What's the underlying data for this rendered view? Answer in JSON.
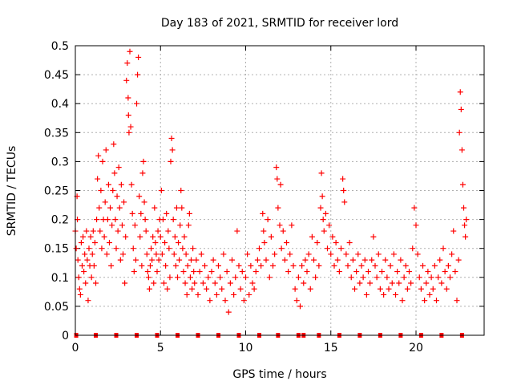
{
  "chart_data": {
    "type": "scatter",
    "title": "Day 183 of 2021, SRMTID for receiver lord",
    "xlabel": "GPS time / hours",
    "ylabel": "SRMTID / TECUs",
    "xlim": [
      0,
      24
    ],
    "ylim": [
      0,
      0.5
    ],
    "x_ticks": [
      0,
      5,
      10,
      15,
      20
    ],
    "x_tick_labels": [
      "0",
      "5",
      "10",
      "15",
      "20"
    ],
    "y_ticks": [
      0,
      0.05,
      0.1,
      0.15,
      0.2,
      0.25,
      0.3,
      0.35,
      0.4,
      0.45,
      0.5
    ],
    "y_tick_labels": [
      "0",
      "0.05",
      "0.1",
      "0.15",
      "0.2",
      "0.25",
      "0.3",
      "0.35",
      "0.4",
      "0.45",
      "0.5"
    ],
    "grid": true,
    "marker": "+",
    "color": "#ff0000",
    "zero_markers_x": [
      0.05,
      1.2,
      2.4,
      3.6,
      4.8,
      6.0,
      7.2,
      8.4,
      9.6,
      10.8,
      11.9,
      13.1,
      13.4,
      14.3,
      15.5,
      16.7,
      17.9,
      19.1,
      20.3,
      21.5,
      22.7
    ],
    "series": [
      {
        "name": "SRMTID",
        "points": [
          [
            0.0,
            0.18
          ],
          [
            0.05,
            0.15
          ],
          [
            0.1,
            0.24
          ],
          [
            0.12,
            0.2
          ],
          [
            0.15,
            0.13
          ],
          [
            0.2,
            0.1
          ],
          [
            0.25,
            0.08
          ],
          [
            0.3,
            0.07
          ],
          [
            0.35,
            0.16
          ],
          [
            0.4,
            0.12
          ],
          [
            0.45,
            0.17
          ],
          [
            0.5,
            0.11
          ],
          [
            0.55,
            0.14
          ],
          [
            0.6,
            0.09
          ],
          [
            0.65,
            0.18
          ],
          [
            0.7,
            0.13
          ],
          [
            0.75,
            0.06
          ],
          [
            0.8,
            0.15
          ],
          [
            0.85,
            0.12
          ],
          [
            0.9,
            0.17
          ],
          [
            0.95,
            0.1
          ],
          [
            1.0,
            0.14
          ],
          [
            1.05,
            0.18
          ],
          [
            1.1,
            0.12
          ],
          [
            1.15,
            0.16
          ],
          [
            1.2,
            0.09
          ],
          [
            1.25,
            0.2
          ],
          [
            1.3,
            0.27
          ],
          [
            1.35,
            0.31
          ],
          [
            1.4,
            0.22
          ],
          [
            1.45,
            0.18
          ],
          [
            1.5,
            0.25
          ],
          [
            1.55,
            0.15
          ],
          [
            1.6,
            0.3
          ],
          [
            1.65,
            0.2
          ],
          [
            1.7,
            0.17
          ],
          [
            1.75,
            0.23
          ],
          [
            1.8,
            0.32
          ],
          [
            1.85,
            0.14
          ],
          [
            1.9,
            0.2
          ],
          [
            1.95,
            0.26
          ],
          [
            2.0,
            0.16
          ],
          [
            2.05,
            0.22
          ],
          [
            2.1,
            0.12
          ],
          [
            2.15,
            0.19
          ],
          [
            2.2,
            0.25
          ],
          [
            2.25,
            0.33
          ],
          [
            2.3,
            0.28
          ],
          [
            2.35,
            0.2
          ],
          [
            2.4,
            0.15
          ],
          [
            2.45,
            0.24
          ],
          [
            2.5,
            0.18
          ],
          [
            2.55,
            0.29
          ],
          [
            2.6,
            0.22
          ],
          [
            2.65,
            0.13
          ],
          [
            2.7,
            0.26
          ],
          [
            2.75,
            0.19
          ],
          [
            2.8,
            0.14
          ],
          [
            2.85,
            0.23
          ],
          [
            2.9,
            0.09
          ],
          [
            2.95,
            0.17
          ],
          [
            3.0,
            0.44
          ],
          [
            3.05,
            0.47
          ],
          [
            3.1,
            0.41
          ],
          [
            3.12,
            0.38
          ],
          [
            3.15,
            0.35
          ],
          [
            3.2,
            0.49
          ],
          [
            3.25,
            0.36
          ],
          [
            3.3,
            0.26
          ],
          [
            3.35,
            0.21
          ],
          [
            3.4,
            0.15
          ],
          [
            3.45,
            0.11
          ],
          [
            3.5,
            0.19
          ],
          [
            3.55,
            0.13
          ],
          [
            3.6,
            0.4
          ],
          [
            3.65,
            0.45
          ],
          [
            3.7,
            0.48
          ],
          [
            3.75,
            0.24
          ],
          [
            3.8,
            0.17
          ],
          [
            3.85,
            0.21
          ],
          [
            3.9,
            0.12
          ],
          [
            3.95,
            0.28
          ],
          [
            4.0,
            0.3
          ],
          [
            4.05,
            0.23
          ],
          [
            4.1,
            0.2
          ],
          [
            4.15,
            0.18
          ],
          [
            4.2,
            0.14
          ],
          [
            4.25,
            0.11
          ],
          [
            4.3,
            0.1
          ],
          [
            4.35,
            0.08
          ],
          [
            4.4,
            0.12
          ],
          [
            4.45,
            0.15
          ],
          [
            4.5,
            0.13
          ],
          [
            4.55,
            0.17
          ],
          [
            4.6,
            0.09
          ],
          [
            4.65,
            0.22
          ],
          [
            4.7,
            0.16
          ],
          [
            4.75,
            0.14
          ],
          [
            4.8,
            0.11
          ],
          [
            4.85,
            0.18
          ],
          [
            4.9,
            0.13
          ],
          [
            4.95,
            0.2
          ],
          [
            5.0,
            0.17
          ],
          [
            5.05,
            0.25
          ],
          [
            5.1,
            0.14
          ],
          [
            5.15,
            0.2
          ],
          [
            5.2,
            0.09
          ],
          [
            5.25,
            0.16
          ],
          [
            5.3,
            0.12
          ],
          [
            5.35,
            0.21
          ],
          [
            5.4,
            0.08
          ],
          [
            5.45,
            0.18
          ],
          [
            5.5,
            0.15
          ],
          [
            5.55,
            0.1
          ],
          [
            5.6,
            0.3
          ],
          [
            5.65,
            0.34
          ],
          [
            5.7,
            0.32
          ],
          [
            5.75,
            0.2
          ],
          [
            5.8,
            0.14
          ],
          [
            5.85,
            0.17
          ],
          [
            5.9,
            0.12
          ],
          [
            5.95,
            0.22
          ],
          [
            6.0,
            0.1
          ],
          [
            6.05,
            0.16
          ],
          [
            6.1,
            0.13
          ],
          [
            6.15,
            0.19
          ],
          [
            6.2,
            0.25
          ],
          [
            6.25,
            0.22
          ],
          [
            6.3,
            0.15
          ],
          [
            6.35,
            0.11
          ],
          [
            6.4,
            0.17
          ],
          [
            6.45,
            0.09
          ],
          [
            6.5,
            0.14
          ],
          [
            6.55,
            0.07
          ],
          [
            6.6,
            0.12
          ],
          [
            6.65,
            0.19
          ],
          [
            6.7,
            0.21
          ],
          [
            6.75,
            0.1
          ],
          [
            6.8,
            0.13
          ],
          [
            6.85,
            0.08
          ],
          [
            6.9,
            0.15
          ],
          [
            6.95,
            0.11
          ],
          [
            7.0,
            0.09
          ],
          [
            7.1,
            0.13
          ],
          [
            7.2,
            0.07
          ],
          [
            7.3,
            0.11
          ],
          [
            7.4,
            0.14
          ],
          [
            7.5,
            0.09
          ],
          [
            7.6,
            0.12
          ],
          [
            7.7,
            0.08
          ],
          [
            7.8,
            0.1
          ],
          [
            7.9,
            0.06
          ],
          [
            8.0,
            0.11
          ],
          [
            8.1,
            0.13
          ],
          [
            8.2,
            0.09
          ],
          [
            8.3,
            0.07
          ],
          [
            8.4,
            0.12
          ],
          [
            8.5,
            0.1
          ],
          [
            8.6,
            0.08
          ],
          [
            8.7,
            0.14
          ],
          [
            8.8,
            0.06
          ],
          [
            8.9,
            0.11
          ],
          [
            9.0,
            0.04
          ],
          [
            9.1,
            0.09
          ],
          [
            9.2,
            0.13
          ],
          [
            9.3,
            0.07
          ],
          [
            9.4,
            0.1
          ],
          [
            9.5,
            0.18
          ],
          [
            9.6,
            0.12
          ],
          [
            9.7,
            0.08
          ],
          [
            9.8,
            0.11
          ],
          [
            9.9,
            0.06
          ],
          [
            10.0,
            0.1
          ],
          [
            10.1,
            0.14
          ],
          [
            10.2,
            0.07
          ],
          [
            10.3,
            0.12
          ],
          [
            10.4,
            0.09
          ],
          [
            10.5,
            0.08
          ],
          [
            10.6,
            0.11
          ],
          [
            10.7,
            0.13
          ],
          [
            10.8,
            0.15
          ],
          [
            10.9,
            0.12
          ],
          [
            11.0,
            0.21
          ],
          [
            11.05,
            0.18
          ],
          [
            11.1,
            0.16
          ],
          [
            11.2,
            0.13
          ],
          [
            11.3,
            0.2
          ],
          [
            11.4,
            0.1
          ],
          [
            11.5,
            0.17
          ],
          [
            11.6,
            0.12
          ],
          [
            11.7,
            0.14
          ],
          [
            11.8,
            0.29
          ],
          [
            11.85,
            0.27
          ],
          [
            11.9,
            0.22
          ],
          [
            12.0,
            0.19
          ],
          [
            12.05,
            0.26
          ],
          [
            12.1,
            0.15
          ],
          [
            12.2,
            0.18
          ],
          [
            12.3,
            0.13
          ],
          [
            12.4,
            0.16
          ],
          [
            12.5,
            0.11
          ],
          [
            12.6,
            0.14
          ],
          [
            12.7,
            0.19
          ],
          [
            12.8,
            0.12
          ],
          [
            12.9,
            0.08
          ],
          [
            13.0,
            0.06
          ],
          [
            13.1,
            0.1
          ],
          [
            13.2,
            0.05
          ],
          [
            13.3,
            0.12
          ],
          [
            13.4,
            0.09
          ],
          [
            13.5,
            0.13
          ],
          [
            13.6,
            0.11
          ],
          [
            13.7,
            0.14
          ],
          [
            13.8,
            0.08
          ],
          [
            13.9,
            0.17
          ],
          [
            14.0,
            0.13
          ],
          [
            14.1,
            0.1
          ],
          [
            14.2,
            0.16
          ],
          [
            14.3,
            0.12
          ],
          [
            14.4,
            0.22
          ],
          [
            14.45,
            0.28
          ],
          [
            14.5,
            0.24
          ],
          [
            14.55,
            0.2
          ],
          [
            14.6,
            0.18
          ],
          [
            14.7,
            0.21
          ],
          [
            14.8,
            0.15
          ],
          [
            14.9,
            0.19
          ],
          [
            15.0,
            0.14
          ],
          [
            15.1,
            0.17
          ],
          [
            15.2,
            0.12
          ],
          [
            15.3,
            0.16
          ],
          [
            15.4,
            0.13
          ],
          [
            15.5,
            0.11
          ],
          [
            15.6,
            0.15
          ],
          [
            15.7,
            0.27
          ],
          [
            15.75,
            0.25
          ],
          [
            15.8,
            0.23
          ],
          [
            15.9,
            0.14
          ],
          [
            16.0,
            0.12
          ],
          [
            16.1,
            0.16
          ],
          [
            16.2,
            0.1
          ],
          [
            16.3,
            0.13
          ],
          [
            16.4,
            0.08
          ],
          [
            16.5,
            0.11
          ],
          [
            16.6,
            0.14
          ],
          [
            16.7,
            0.09
          ],
          [
            16.8,
            0.12
          ],
          [
            16.9,
            0.1
          ],
          [
            17.0,
            0.13
          ],
          [
            17.1,
            0.07
          ],
          [
            17.2,
            0.11
          ],
          [
            17.3,
            0.09
          ],
          [
            17.4,
            0.13
          ],
          [
            17.5,
            0.17
          ],
          [
            17.6,
            0.12
          ],
          [
            17.7,
            0.1
          ],
          [
            17.8,
            0.14
          ],
          [
            17.9,
            0.08
          ],
          [
            18.0,
            0.11
          ],
          [
            18.1,
            0.07
          ],
          [
            18.2,
            0.13
          ],
          [
            18.3,
            0.1
          ],
          [
            18.4,
            0.08
          ],
          [
            18.5,
            0.12
          ],
          [
            18.6,
            0.09
          ],
          [
            18.7,
            0.14
          ],
          [
            18.8,
            0.07
          ],
          [
            18.9,
            0.11
          ],
          [
            19.0,
            0.09
          ],
          [
            19.1,
            0.13
          ],
          [
            19.2,
            0.06
          ],
          [
            19.3,
            0.1
          ],
          [
            19.4,
            0.12
          ],
          [
            19.5,
            0.08
          ],
          [
            19.6,
            0.11
          ],
          [
            19.7,
            0.09
          ],
          [
            19.8,
            0.15
          ],
          [
            19.9,
            0.22
          ],
          [
            20.0,
            0.19
          ],
          [
            20.1,
            0.14
          ],
          [
            20.2,
            0.1
          ],
          [
            20.3,
            0.08
          ],
          [
            20.4,
            0.12
          ],
          [
            20.5,
            0.06
          ],
          [
            20.6,
            0.09
          ],
          [
            20.7,
            0.11
          ],
          [
            20.8,
            0.07
          ],
          [
            20.9,
            0.1
          ],
          [
            21.0,
            0.08
          ],
          [
            21.1,
            0.12
          ],
          [
            21.2,
            0.06
          ],
          [
            21.3,
            0.1
          ],
          [
            21.4,
            0.13
          ],
          [
            21.5,
            0.09
          ],
          [
            21.6,
            0.15
          ],
          [
            21.7,
            0.11
          ],
          [
            21.8,
            0.08
          ],
          [
            21.9,
            0.12
          ],
          [
            22.0,
            0.1
          ],
          [
            22.1,
            0.14
          ],
          [
            22.2,
            0.18
          ],
          [
            22.3,
            0.11
          ],
          [
            22.4,
            0.06
          ],
          [
            22.5,
            0.13
          ],
          [
            22.55,
            0.35
          ],
          [
            22.6,
            0.42
          ],
          [
            22.65,
            0.39
          ],
          [
            22.7,
            0.32
          ],
          [
            22.75,
            0.26
          ],
          [
            22.8,
            0.22
          ],
          [
            22.85,
            0.19
          ],
          [
            22.9,
            0.17
          ],
          [
            22.95,
            0.2
          ]
        ]
      }
    ]
  }
}
